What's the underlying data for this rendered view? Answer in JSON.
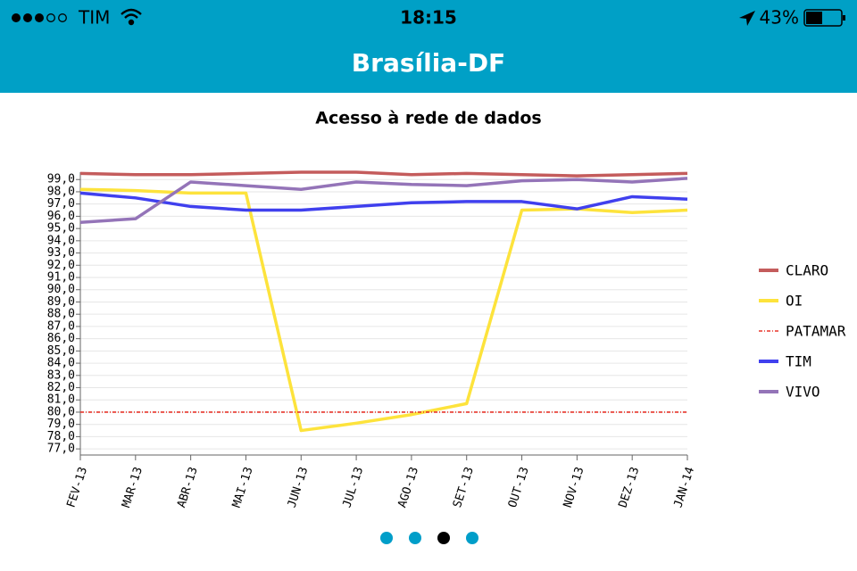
{
  "status_bar": {
    "carrier": "TIM",
    "time": "18:15",
    "battery": "43%"
  },
  "header": {
    "title": "Brasília-DF"
  },
  "chart_data": {
    "type": "line",
    "title": "Acesso à rede de dados",
    "categories": [
      "FEV-13",
      "MAR-13",
      "ABR-13",
      "MAI-13",
      "JUN-13",
      "JUL-13",
      "AGO-13",
      "SET-13",
      "OUT-13",
      "NOV-13",
      "DEZ-13",
      "JAN-14"
    ],
    "series": [
      {
        "name": "CLARO",
        "color": "#c45c5c",
        "values": [
          99.5,
          99.4,
          99.4,
          99.5,
          99.6,
          99.6,
          99.4,
          99.5,
          99.4,
          99.3,
          99.4,
          99.5
        ]
      },
      {
        "name": "OI",
        "color": "#fde33c",
        "values": [
          98.2,
          98.1,
          97.9,
          97.9,
          78.5,
          79.1,
          79.8,
          80.7,
          96.5,
          96.6,
          96.3,
          96.5
        ]
      },
      {
        "name": "PATAMAR",
        "color": "#e8352a",
        "dashed": true,
        "values": [
          80,
          80,
          80,
          80,
          80,
          80,
          80,
          80,
          80,
          80,
          80,
          80
        ]
      },
      {
        "name": "TIM",
        "color": "#4040ee",
        "values": [
          97.9,
          97.5,
          96.8,
          96.5,
          96.5,
          96.8,
          97.1,
          97.2,
          97.2,
          96.6,
          97.6,
          97.4
        ]
      },
      {
        "name": "VIVO",
        "color": "#9474b8",
        "values": [
          95.5,
          95.8,
          98.8,
          98.5,
          98.2,
          98.8,
          98.6,
          98.5,
          98.9,
          99.0,
          98.8,
          99.1
        ]
      }
    ],
    "ylim": [
      76.5,
      99.6
    ],
    "yticks": [
      {
        "value": 77,
        "label": "77,0"
      },
      {
        "value": 78,
        "label": "78,0"
      },
      {
        "value": 79,
        "label": "79,0"
      },
      {
        "value": 80,
        "label": "80,0"
      },
      {
        "value": 81,
        "label": "81,0"
      },
      {
        "value": 82,
        "label": "82,0"
      },
      {
        "value": 83,
        "label": "83,0"
      },
      {
        "value": 84,
        "label": "84,0"
      },
      {
        "value": 85,
        "label": "85,0"
      },
      {
        "value": 86,
        "label": "86,0"
      },
      {
        "value": 87,
        "label": "87,0"
      },
      {
        "value": 88,
        "label": "88,0"
      },
      {
        "value": 89,
        "label": "89,0"
      },
      {
        "value": 90,
        "label": "90,0"
      },
      {
        "value": 91,
        "label": "91,0"
      },
      {
        "value": 92,
        "label": "92,0"
      },
      {
        "value": 93,
        "label": "93,0"
      },
      {
        "value": 94,
        "label": "94,0"
      },
      {
        "value": 95,
        "label": "95,0"
      },
      {
        "value": 96,
        "label": "96,0"
      },
      {
        "value": 97,
        "label": "97,0"
      },
      {
        "value": 98,
        "label": "98,0"
      },
      {
        "value": 99,
        "label": "99,0"
      }
    ],
    "grid": true,
    "legend": "right"
  }
}
